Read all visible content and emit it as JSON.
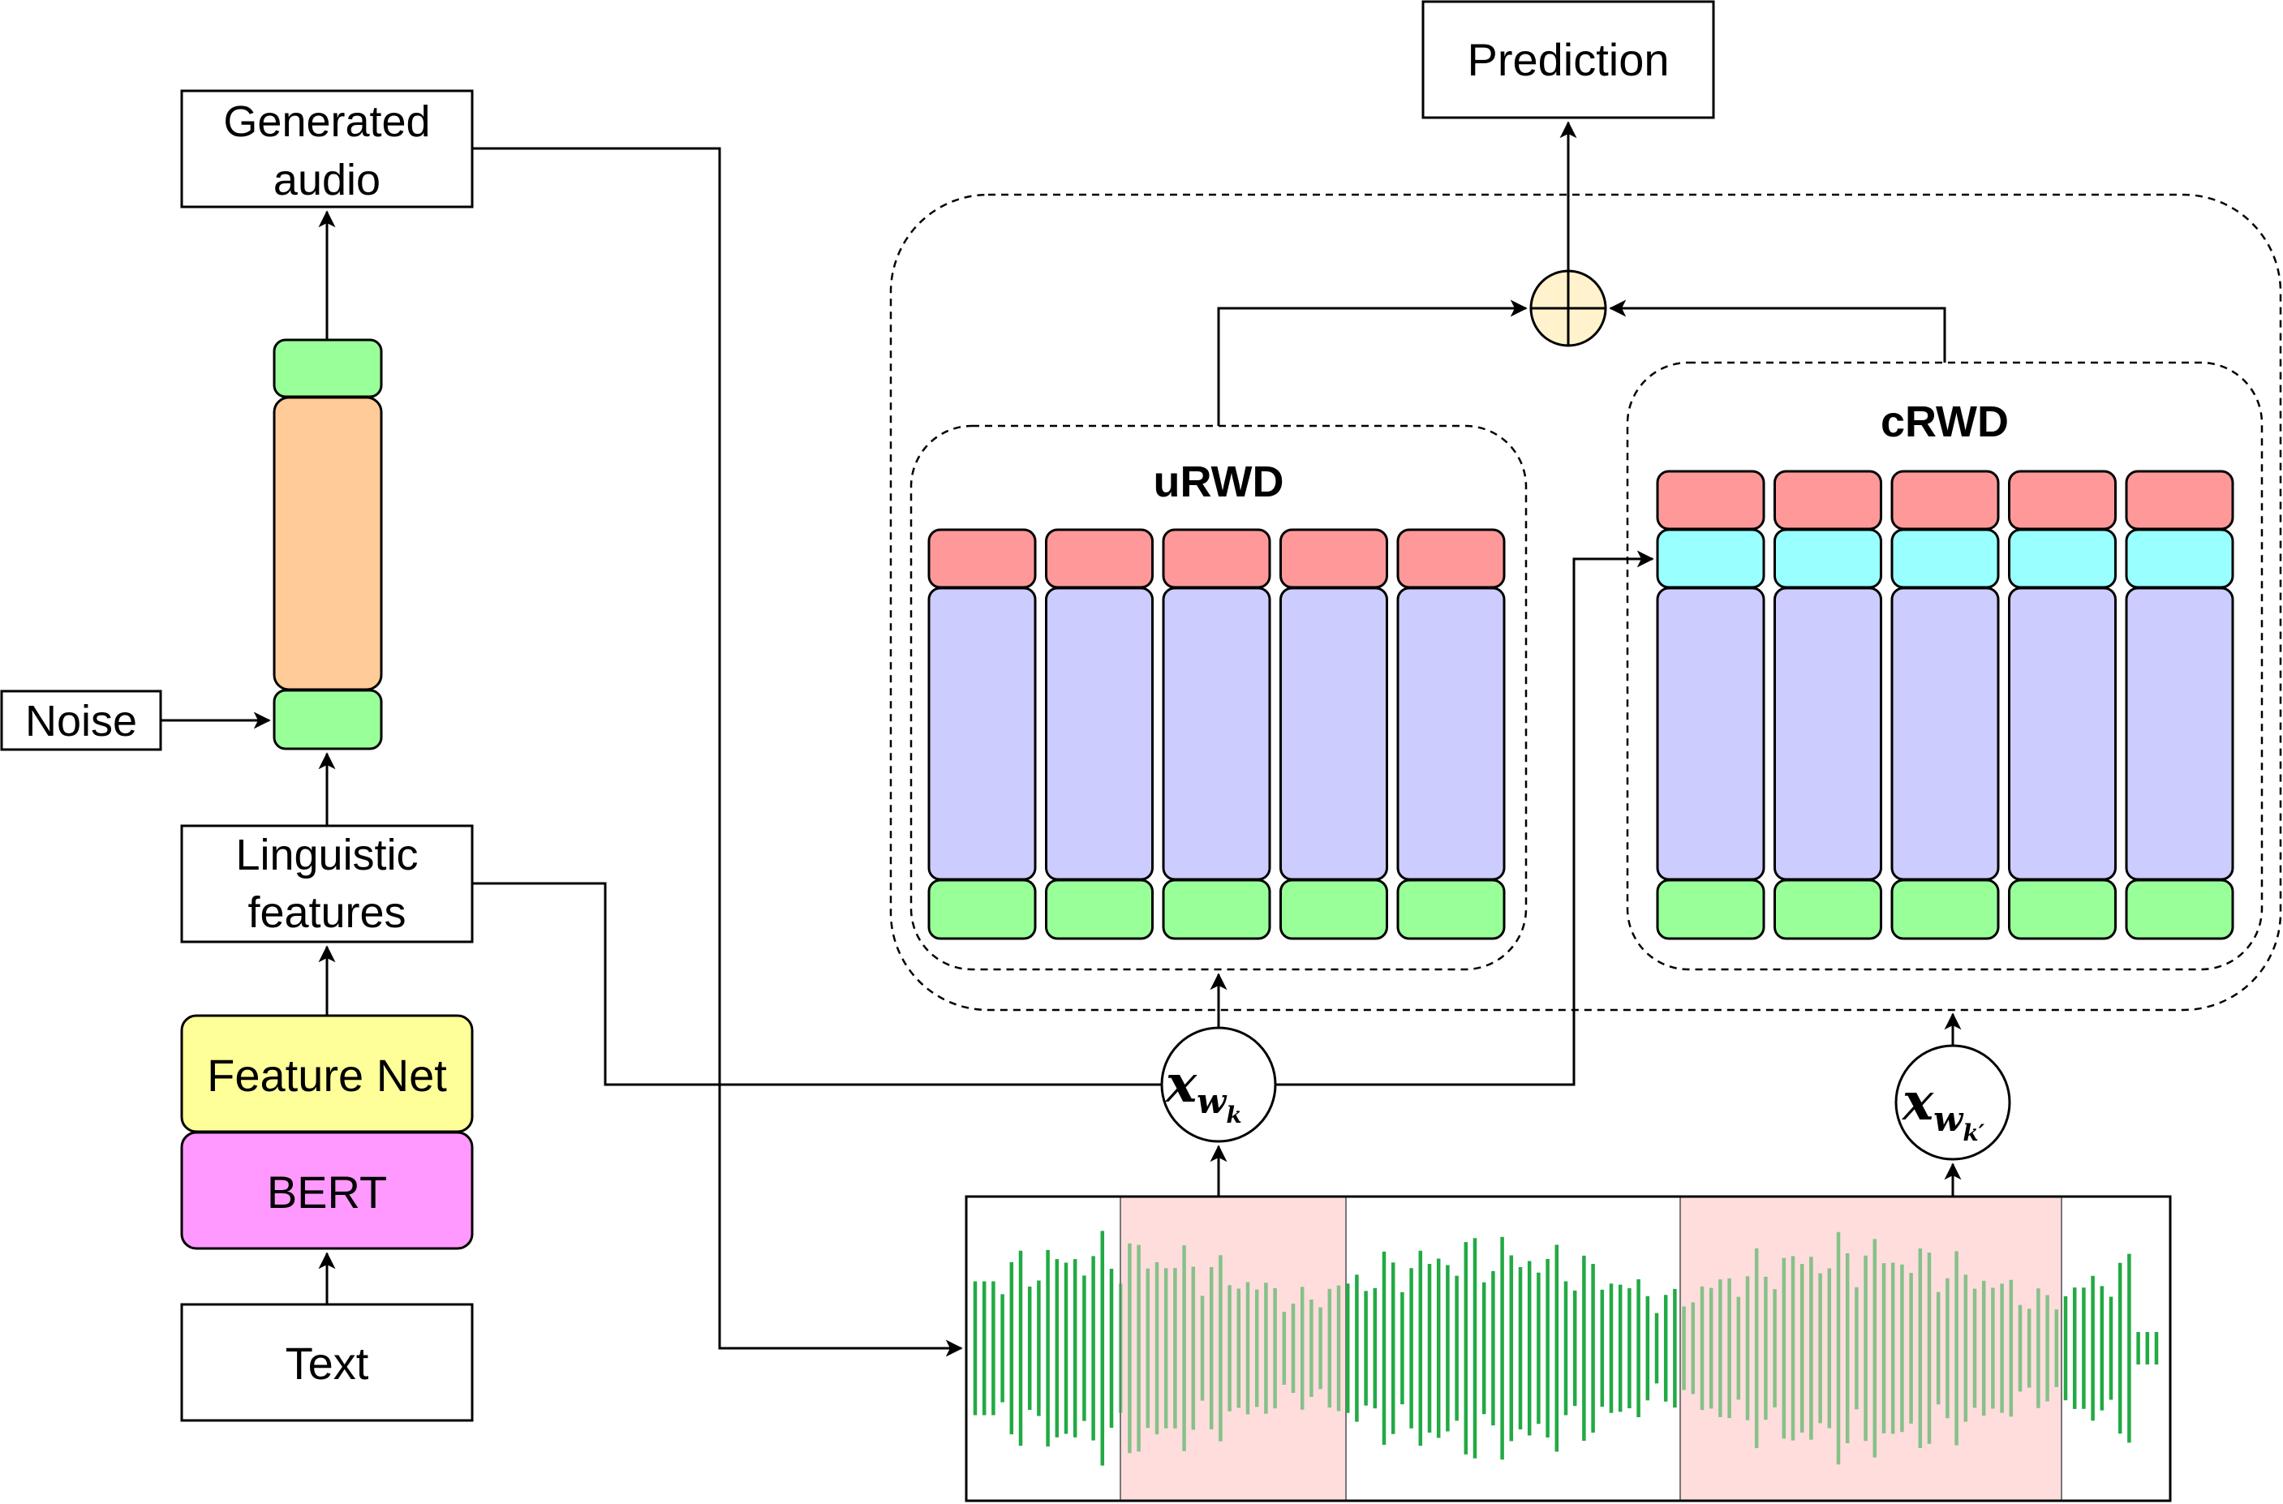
{
  "labels": {
    "text": "Text",
    "bert": "BERT",
    "feature_net": "Feature Net",
    "linguistic_1": "Linguistic",
    "linguistic_2": "features",
    "noise": "Noise",
    "generated_1": "Generated",
    "generated_2": "audio",
    "prediction": "Prediction",
    "urwd": "uRWD",
    "crwd": "cRWD",
    "x_main": "x",
    "sub_left": "w",
    "sub_left_k": "k",
    "sub_right_k": "k′"
  },
  "colors": {
    "bert": "#ff99ff",
    "feature_net": "#ffff99",
    "generator_mid": "#ffcc99",
    "green": "#99ff99",
    "red": "#ff9999",
    "cyan": "#99ffff",
    "lavender": "#ccccff",
    "waveform": "#22aa44",
    "window_highlight": "#ffdddd",
    "sum_node": "#fff2cc"
  },
  "discriminators": {
    "urwd_columns": 5,
    "crwd_columns": 5
  }
}
